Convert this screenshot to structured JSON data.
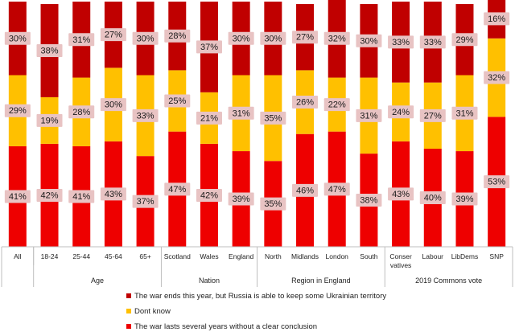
{
  "chart_data": {
    "type": "bar",
    "stacked": true,
    "categories": [
      "All",
      "18-24",
      "25-44",
      "45-64",
      "65+",
      "Scotland",
      "Wales",
      "England",
      "North",
      "Midlands",
      "London",
      "South",
      "Conser vatives",
      "Labour",
      "LibDems",
      "SNP"
    ],
    "groups": [
      {
        "name": "",
        "categories": [
          "All"
        ]
      },
      {
        "name": "Age",
        "categories": [
          "18-24",
          "25-44",
          "45-64",
          "65+"
        ]
      },
      {
        "name": "Nation",
        "categories": [
          "Scotland",
          "Wales",
          "England"
        ]
      },
      {
        "name": "Region in England",
        "categories": [
          "North",
          "Midlands",
          "London",
          "South"
        ]
      },
      {
        "name": "2019 Commons vote",
        "categories": [
          "Conser vatives",
          "Labour",
          "LibDems",
          "SNP"
        ]
      }
    ],
    "series": [
      {
        "name": "The war lasts several years without a clear conclusion",
        "color": "#ee0000",
        "values": [
          41,
          42,
          41,
          43,
          37,
          47,
          42,
          39,
          35,
          46,
          47,
          38,
          43,
          40,
          39,
          53
        ]
      },
      {
        "name": "Dont know",
        "color": "#ffc000",
        "values": [
          29,
          19,
          28,
          30,
          33,
          25,
          21,
          31,
          35,
          26,
          22,
          31,
          24,
          27,
          31,
          32
        ]
      },
      {
        "name": "The war ends this year, but Russia is able to keep some Ukrainian territory",
        "color": "#c00000",
        "values": [
          30,
          38,
          31,
          27,
          30,
          28,
          37,
          30,
          30,
          27,
          32,
          30,
          33,
          33,
          29,
          16
        ]
      }
    ],
    "legend_order": [
      2,
      1,
      0
    ],
    "value_suffix": "%",
    "ylim": [
      0,
      100
    ],
    "legend_position": "bottom",
    "grid": false,
    "title": "",
    "xlabel": "",
    "ylabel": ""
  }
}
